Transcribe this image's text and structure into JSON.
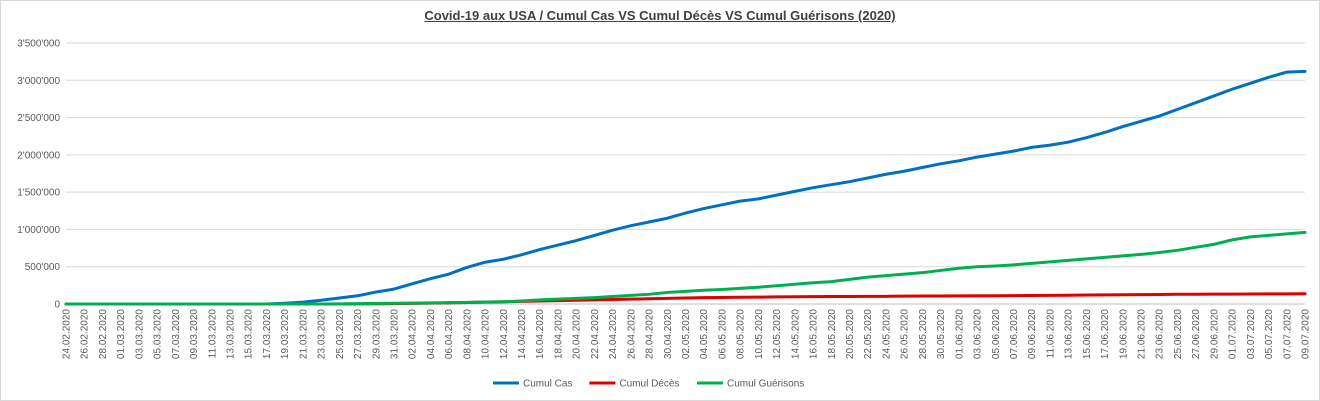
{
  "chart_data": {
    "type": "line",
    "title": "Covid-19 aux USA / Cumul Cas VS Cumul Décès VS Cumul Guérisons (2020)",
    "xlabel": "",
    "ylabel": "",
    "ylim": [
      0,
      3500000
    ],
    "grid": true,
    "legend_position": "bottom",
    "y_ticks": [
      {
        "value": 0,
        "label": "0"
      },
      {
        "value": 500000,
        "label": "500'000"
      },
      {
        "value": 1000000,
        "label": "1'000'000"
      },
      {
        "value": 1500000,
        "label": "1'500'000"
      },
      {
        "value": 2000000,
        "label": "2'000'000"
      },
      {
        "value": 2500000,
        "label": "2'500'000"
      },
      {
        "value": 3000000,
        "label": "3'000'000"
      },
      {
        "value": 3500000,
        "label": "3'500'000"
      }
    ],
    "x_tick_labels": [
      "24.02.2020",
      "26.02.2020",
      "28.02.2020",
      "01.03.2020",
      "03.03.2020",
      "05.03.2020",
      "07.03.2020",
      "09.03.2020",
      "11.03.2020",
      "13.03.2020",
      "15.03.2020",
      "17.03.2020",
      "19.03.2020",
      "21.03.2020",
      "23.03.2020",
      "25.03.2020",
      "27.03.2020",
      "29.03.2020",
      "31.03.2020",
      "02.04.2020",
      "04.04.2020",
      "06.04.2020",
      "08.04.2020",
      "10.04.2020",
      "12.04.2020",
      "14.04.2020",
      "16.04.2020",
      "18.04.2020",
      "20.04.2020",
      "22.04.2020",
      "24.04.2020",
      "26.04.2020",
      "28.04.2020",
      "30.04.2020",
      "02.05.2020",
      "04.05.2020",
      "06.05.2020",
      "08.05.2020",
      "10.05.2020",
      "12.05.2020",
      "14.05.2020",
      "16.05.2020",
      "18.05.2020",
      "20.05.2020",
      "22.05.2020",
      "24.05.2020",
      "26.05.2020",
      "28.05.2020",
      "30.05.2020",
      "01.06.2020",
      "03.06.2020",
      "05.06.2020",
      "07.06.2020",
      "09.06.2020",
      "11.06.2020",
      "13.06.2020",
      "15.06.2020",
      "17.06.2020",
      "19.06.2020",
      "21.06.2020",
      "23.06.2020",
      "25.06.2020",
      "27.06.2020",
      "29.06.2020",
      "01.07.2020",
      "03.07.2020",
      "05.07.2020",
      "07.07.2020",
      "09.07.2020"
    ],
    "x": [
      "24.02.2020",
      "26.02.2020",
      "28.02.2020",
      "01.03.2020",
      "03.03.2020",
      "05.03.2020",
      "07.03.2020",
      "09.03.2020",
      "11.03.2020",
      "13.03.2020",
      "15.03.2020",
      "17.03.2020",
      "19.03.2020",
      "21.03.2020",
      "23.03.2020",
      "25.03.2020",
      "27.03.2020",
      "29.03.2020",
      "31.03.2020",
      "02.04.2020",
      "04.04.2020",
      "06.04.2020",
      "08.04.2020",
      "10.04.2020",
      "12.04.2020",
      "14.04.2020",
      "16.04.2020",
      "18.04.2020",
      "20.04.2020",
      "22.04.2020",
      "24.04.2020",
      "26.04.2020",
      "28.04.2020",
      "30.04.2020",
      "02.05.2020",
      "04.05.2020",
      "06.05.2020",
      "08.05.2020",
      "10.05.2020",
      "12.05.2020",
      "14.05.2020",
      "16.05.2020",
      "18.05.2020",
      "20.05.2020",
      "22.05.2020",
      "24.05.2020",
      "26.05.2020",
      "28.05.2020",
      "30.05.2020",
      "01.06.2020",
      "03.06.2020",
      "05.06.2020",
      "07.06.2020",
      "09.06.2020",
      "11.06.2020",
      "13.06.2020",
      "15.06.2020",
      "17.06.2020",
      "19.06.2020",
      "21.06.2020",
      "23.06.2020",
      "25.06.2020",
      "27.06.2020",
      "29.06.2020",
      "01.07.2020",
      "03.07.2020",
      "05.07.2020",
      "07.07.2020",
      "09.07.2020"
    ],
    "series": [
      {
        "name": "Cumul Cas",
        "color": "#0070c0",
        "values": [
          0,
          0,
          0,
          0,
          0,
          0,
          0,
          0,
          0,
          0,
          0,
          0,
          10000,
          25000,
          50000,
          80000,
          110000,
          160000,
          200000,
          270000,
          340000,
          400000,
          490000,
          560000,
          600000,
          660000,
          730000,
          790000,
          850000,
          920000,
          990000,
          1050000,
          1100000,
          1150000,
          1220000,
          1280000,
          1330000,
          1380000,
          1410000,
          1460000,
          1510000,
          1560000,
          1600000,
          1640000,
          1690000,
          1740000,
          1780000,
          1830000,
          1880000,
          1920000,
          1970000,
          2010000,
          2050000,
          2100000,
          2130000,
          2170000,
          2230000,
          2300000,
          2380000,
          2450000,
          2520000,
          2610000,
          2700000,
          2790000,
          2880000,
          2960000,
          3040000,
          3110000,
          3120000
        ]
      },
      {
        "name": "Cumul Décès",
        "color": "#e00000",
        "values": [
          0,
          0,
          0,
          0,
          0,
          0,
          0,
          0,
          0,
          0,
          0,
          0,
          0,
          0,
          0,
          0,
          1000,
          3000,
          5000,
          8000,
          12000,
          15000,
          20000,
          25000,
          30000,
          35000,
          40000,
          45000,
          50000,
          55000,
          60000,
          65000,
          70000,
          75000,
          80000,
          85000,
          88000,
          90000,
          92000,
          95000,
          97000,
          99000,
          100000,
          101000,
          102000,
          103000,
          105000,
          107000,
          108000,
          109000,
          110000,
          111000,
          112000,
          114000,
          116000,
          118000,
          120000,
          122000,
          124000,
          126000,
          128000,
          130000,
          131000,
          132000,
          133000,
          134000,
          135000,
          136000,
          137000
        ]
      },
      {
        "name": "Cumul Guérisons",
        "color": "#00b050",
        "values": [
          0,
          0,
          0,
          0,
          0,
          0,
          0,
          0,
          0,
          0,
          0,
          0,
          0,
          0,
          0,
          2000,
          5000,
          8000,
          10000,
          12000,
          15000,
          18000,
          22000,
          26000,
          30000,
          40000,
          55000,
          65000,
          75000,
          85000,
          100000,
          115000,
          130000,
          155000,
          170000,
          185000,
          195000,
          210000,
          225000,
          245000,
          265000,
          285000,
          300000,
          330000,
          360000,
          380000,
          400000,
          420000,
          450000,
          480000,
          500000,
          510000,
          525000,
          545000,
          565000,
          585000,
          605000,
          625000,
          645000,
          665000,
          690000,
          720000,
          760000,
          800000,
          860000,
          900000,
          920000,
          940000,
          960000
        ]
      }
    ]
  }
}
